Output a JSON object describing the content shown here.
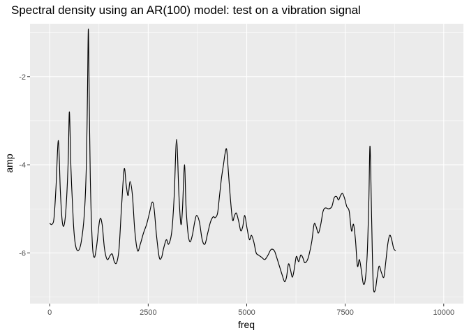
{
  "chart_data": {
    "type": "line",
    "title": "Spectral density using an AR(100) model: test on a vibration signal",
    "xlabel": "freq",
    "ylabel": "amp",
    "xlim": [
      -500,
      10500
    ],
    "ylim": [
      -7.15,
      -0.8
    ],
    "x_ticks": [
      0,
      2500,
      5000,
      7500,
      10000
    ],
    "x_tick_labels": [
      "0",
      "2500",
      "5000",
      "7500",
      "10000"
    ],
    "y_ticks": [
      -6,
      -4,
      -2
    ],
    "y_tick_labels": [
      "-6",
      "-4",
      "-2"
    ],
    "grid": true,
    "legend": "none",
    "colors": {
      "panel": "#ebebeb",
      "grid": "#ffffff",
      "line": "#000000"
    },
    "series": [
      {
        "points": [
          [
            0,
            -5.33
          ],
          [
            60,
            -5.35
          ],
          [
            110,
            -5.2
          ],
          [
            160,
            -4.5
          ],
          [
            220,
            -3.45
          ],
          [
            270,
            -4.6
          ],
          [
            320,
            -5.3
          ],
          [
            370,
            -5.35
          ],
          [
            420,
            -4.9
          ],
          [
            470,
            -3.9
          ],
          [
            500,
            -2.8
          ],
          [
            540,
            -4.1
          ],
          [
            600,
            -5.3
          ],
          [
            650,
            -5.8
          ],
          [
            720,
            -5.95
          ],
          [
            800,
            -5.75
          ],
          [
            880,
            -5.1
          ],
          [
            930,
            -4.0
          ],
          [
            960,
            -2.3
          ],
          [
            980,
            -0.92
          ],
          [
            1000,
            -2.2
          ],
          [
            1030,
            -4.3
          ],
          [
            1080,
            -5.75
          ],
          [
            1130,
            -6.1
          ],
          [
            1190,
            -5.85
          ],
          [
            1270,
            -5.25
          ],
          [
            1330,
            -5.35
          ],
          [
            1390,
            -5.9
          ],
          [
            1460,
            -6.15
          ],
          [
            1540,
            -6.05
          ],
          [
            1590,
            -6.03
          ],
          [
            1640,
            -6.2
          ],
          [
            1700,
            -6.22
          ],
          [
            1760,
            -5.9
          ],
          [
            1820,
            -5.0
          ],
          [
            1890,
            -4.1
          ],
          [
            1940,
            -4.45
          ],
          [
            1990,
            -4.7
          ],
          [
            2040,
            -4.38
          ],
          [
            2100,
            -4.7
          ],
          [
            2160,
            -5.5
          ],
          [
            2230,
            -5.95
          ],
          [
            2300,
            -5.8
          ],
          [
            2380,
            -5.55
          ],
          [
            2460,
            -5.35
          ],
          [
            2530,
            -5.1
          ],
          [
            2600,
            -4.85
          ],
          [
            2650,
            -5.0
          ],
          [
            2710,
            -5.6
          ],
          [
            2780,
            -6.1
          ],
          [
            2840,
            -6.1
          ],
          [
            2890,
            -5.9
          ],
          [
            2960,
            -5.7
          ],
          [
            3020,
            -5.8
          ],
          [
            3100,
            -5.5
          ],
          [
            3160,
            -4.7
          ],
          [
            3220,
            -3.42
          ],
          [
            3280,
            -4.7
          ],
          [
            3330,
            -5.35
          ],
          [
            3370,
            -5.0
          ],
          [
            3420,
            -4.0
          ],
          [
            3460,
            -4.95
          ],
          [
            3510,
            -5.55
          ],
          [
            3560,
            -5.75
          ],
          [
            3620,
            -5.6
          ],
          [
            3680,
            -5.3
          ],
          [
            3730,
            -5.15
          ],
          [
            3800,
            -5.3
          ],
          [
            3870,
            -5.7
          ],
          [
            3940,
            -5.8
          ],
          [
            4010,
            -5.55
          ],
          [
            4080,
            -5.3
          ],
          [
            4150,
            -5.18
          ],
          [
            4200,
            -5.2
          ],
          [
            4260,
            -5.1
          ],
          [
            4310,
            -4.7
          ],
          [
            4360,
            -4.3
          ],
          [
            4410,
            -4.0
          ],
          [
            4450,
            -3.75
          ],
          [
            4490,
            -3.65
          ],
          [
            4530,
            -4.1
          ],
          [
            4580,
            -4.7
          ],
          [
            4640,
            -5.25
          ],
          [
            4690,
            -5.15
          ],
          [
            4740,
            -5.1
          ],
          [
            4800,
            -5.3
          ],
          [
            4850,
            -5.5
          ],
          [
            4900,
            -5.4
          ],
          [
            4950,
            -5.15
          ],
          [
            5010,
            -5.45
          ],
          [
            5070,
            -5.7
          ],
          [
            5120,
            -5.6
          ],
          [
            5180,
            -5.75
          ],
          [
            5240,
            -6.0
          ],
          [
            5300,
            -6.05
          ],
          [
            5380,
            -6.1
          ],
          [
            5460,
            -6.15
          ],
          [
            5540,
            -6.05
          ],
          [
            5620,
            -5.92
          ],
          [
            5700,
            -5.95
          ],
          [
            5760,
            -6.1
          ],
          [
            5830,
            -6.3
          ],
          [
            5900,
            -6.5
          ],
          [
            5960,
            -6.65
          ],
          [
            6010,
            -6.55
          ],
          [
            6060,
            -6.25
          ],
          [
            6110,
            -6.38
          ],
          [
            6160,
            -6.55
          ],
          [
            6210,
            -6.35
          ],
          [
            6260,
            -6.08
          ],
          [
            6320,
            -6.2
          ],
          [
            6370,
            -6.05
          ],
          [
            6420,
            -6.1
          ],
          [
            6470,
            -6.22
          ],
          [
            6530,
            -6.18
          ],
          [
            6580,
            -6.05
          ],
          [
            6650,
            -5.75
          ],
          [
            6710,
            -5.35
          ],
          [
            6760,
            -5.4
          ],
          [
            6820,
            -5.55
          ],
          [
            6880,
            -5.35
          ],
          [
            6940,
            -5.05
          ],
          [
            7000,
            -4.98
          ],
          [
            7080,
            -5.0
          ],
          [
            7160,
            -4.95
          ],
          [
            7220,
            -4.75
          ],
          [
            7280,
            -4.72
          ],
          [
            7330,
            -4.8
          ],
          [
            7380,
            -4.7
          ],
          [
            7430,
            -4.65
          ],
          [
            7480,
            -4.75
          ],
          [
            7540,
            -4.95
          ],
          [
            7600,
            -5.05
          ],
          [
            7660,
            -5.5
          ],
          [
            7710,
            -5.35
          ],
          [
            7760,
            -5.7
          ],
          [
            7810,
            -6.3
          ],
          [
            7860,
            -6.15
          ],
          [
            7910,
            -6.4
          ],
          [
            7960,
            -6.7
          ],
          [
            8010,
            -6.6
          ],
          [
            8060,
            -6.0
          ],
          [
            8100,
            -4.8
          ],
          [
            8130,
            -3.58
          ],
          [
            8170,
            -5.2
          ],
          [
            8210,
            -6.7
          ],
          [
            8260,
            -6.85
          ],
          [
            8310,
            -6.55
          ],
          [
            8360,
            -6.3
          ],
          [
            8420,
            -6.45
          ],
          [
            8480,
            -6.55
          ],
          [
            8530,
            -6.2
          ],
          [
            8580,
            -5.8
          ],
          [
            8630,
            -5.6
          ],
          [
            8680,
            -5.7
          ],
          [
            8730,
            -5.9
          ],
          [
            8780,
            -5.95
          ]
        ]
      }
    ]
  }
}
